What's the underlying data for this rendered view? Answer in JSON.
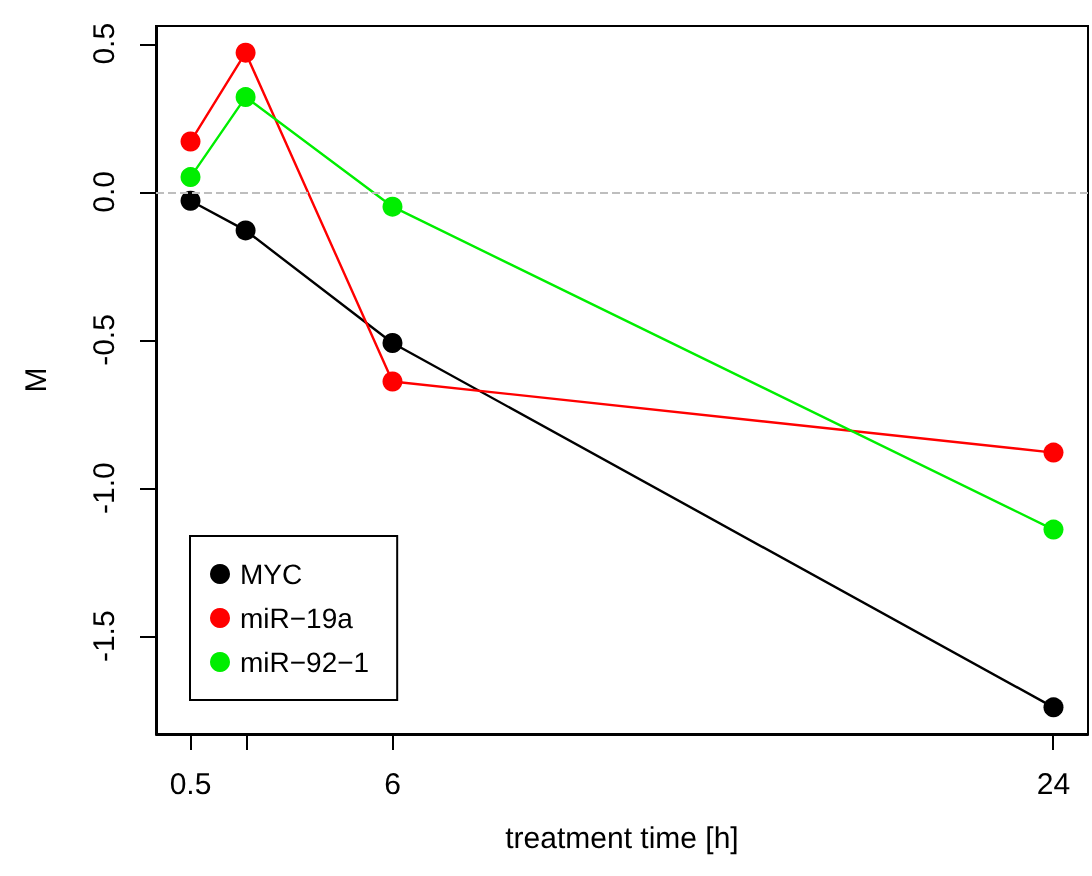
{
  "chart_data": {
    "type": "line",
    "xlabel": "treatment time [h]",
    "ylabel": "M",
    "x": [
      0.5,
      2,
      6,
      24
    ],
    "series": [
      {
        "name": "MYC",
        "color": "#000000",
        "values": [
          -0.03,
          -0.13,
          -0.51,
          -1.74
        ]
      },
      {
        "name": "miR−19a",
        "color": "#ff0000",
        "values": [
          0.17,
          0.47,
          -0.64,
          -0.88
        ]
      },
      {
        "name": "miR−92−1",
        "color": "#00ee00",
        "values": [
          0.05,
          0.32,
          -0.05,
          -1.14
        ]
      }
    ],
    "xlim": [
      -0.44,
      24.94
    ],
    "xticks": [
      0.5,
      {
        "value": 2,
        "label": null
      },
      6,
      24
    ],
    "ylim": [
      -1.83,
      0.56
    ],
    "yticks": [
      -1.5,
      {
        "value": -1,
        "label": "-1.0"
      },
      -0.5,
      {
        "value": 0,
        "label": "0.0"
      },
      0.5
    ],
    "ref_lines": [
      {
        "axis": "y",
        "value": 0,
        "color": "#bebebe",
        "line_style": "dashed"
      }
    ],
    "legend": "bottom left",
    "marker": "circle",
    "line_style": "solid",
    "grid": false
  }
}
